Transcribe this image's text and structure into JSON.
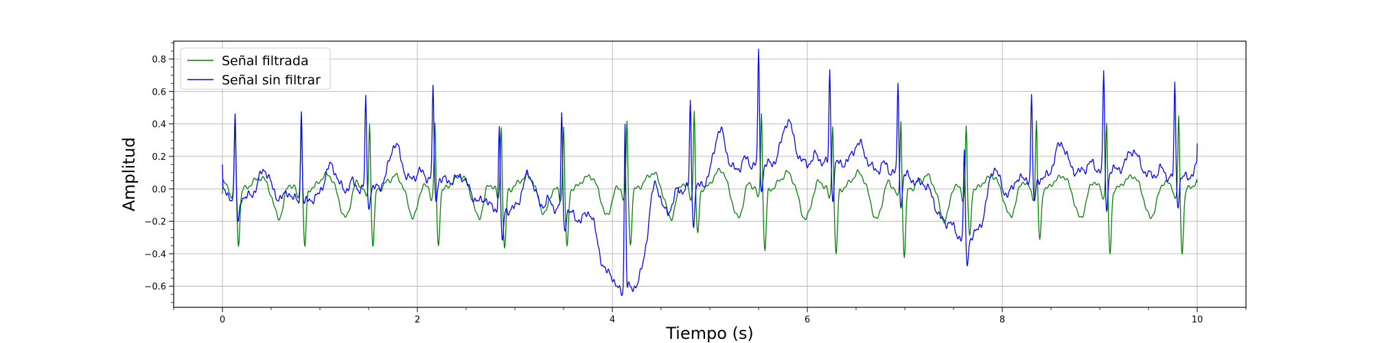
{
  "chart_data": {
    "type": "line",
    "title": "",
    "xlabel": "Tiempo (s)",
    "ylabel": "Amplitud",
    "xlim": [
      -0.5,
      10.5
    ],
    "ylim": [
      -0.73,
      0.91
    ],
    "xticks": [
      0,
      2,
      4,
      6,
      8,
      10
    ],
    "xtick_labels": [
      "0",
      "2",
      "4",
      "6",
      "8",
      "10"
    ],
    "yticks": [
      -0.6,
      -0.4,
      -0.2,
      0.0,
      0.2,
      0.4,
      0.6,
      0.8
    ],
    "ytick_labels": [
      "−0.6",
      "−0.4",
      "−0.2",
      "0.0",
      "0.2",
      "0.4",
      "0.6",
      "0.8"
    ],
    "grid": true,
    "legend_position": "top-left",
    "series": [
      {
        "name": "Señal filtrada",
        "color": "#008000",
        "beats": [
          0.13,
          0.81,
          1.51,
          2.18,
          2.86,
          3.5,
          4.15,
          4.84,
          5.53,
          6.26,
          6.96,
          7.63,
          8.35,
          9.07,
          9.81
        ],
        "r_peak": [
          0.38,
          0.42,
          0.4,
          0.4,
          0.39,
          0.38,
          0.41,
          0.48,
          0.48,
          0.4,
          0.42,
          0.38,
          0.4,
          0.4,
          0.43
        ],
        "s_trough": [
          -0.34,
          -0.36,
          -0.35,
          -0.35,
          -0.38,
          -0.37,
          -0.34,
          -0.28,
          -0.38,
          -0.41,
          -0.41,
          -0.3,
          -0.32,
          -0.4,
          -0.39
        ],
        "t_wave": [
          0.07,
          0.09,
          0.08,
          0.08,
          0.08,
          0.08,
          0.1,
          0.12,
          0.1,
          0.1,
          0.08,
          0.08,
          0.08,
          0.08,
          0.08
        ],
        "t_trough": [
          -0.18,
          -0.18,
          -0.18,
          -0.18,
          -0.17,
          -0.18,
          -0.18,
          -0.18,
          -0.19,
          -0.19,
          -0.2,
          -0.17,
          -0.18,
          -0.18,
          -0.17
        ],
        "x_range": [
          0.0,
          10.0
        ],
        "start_value": -0.03,
        "end_value": 0.04
      },
      {
        "name": "Señal sin filtrar",
        "color": "#0000ff",
        "beats": [
          0.13,
          0.81,
          1.47,
          2.16,
          2.84,
          3.48,
          4.13,
          4.8,
          5.5,
          6.23,
          6.93,
          7.61,
          8.3,
          9.04,
          9.77
        ],
        "r_peak": [
          0.47,
          0.49,
          0.58,
          0.63,
          0.41,
          0.45,
          0.4,
          0.55,
          0.84,
          0.74,
          0.64,
          0.22,
          0.57,
          0.71,
          0.64
        ],
        "s_trough": [
          -0.22,
          -0.1,
          -0.1,
          -0.07,
          -0.33,
          -0.24,
          -0.6,
          -0.21,
          0.0,
          -0.05,
          -0.1,
          -0.47,
          -0.09,
          -0.13,
          -0.09
        ],
        "baseline": [
          -0.05,
          -0.07,
          0.0,
          0.07,
          -0.13,
          -0.12,
          -0.64,
          0.01,
          0.15,
          0.16,
          0.1,
          -0.3,
          0.06,
          0.12,
          0.07
        ],
        "t_wave": [
          0.17,
          0.16,
          0.31,
          0.18,
          0.14,
          0.12,
          -0.16,
          0.38,
          0.48,
          0.34,
          0.2,
          0.05,
          0.31,
          0.29,
          0.28
        ],
        "x_range": [
          0.0,
          10.0
        ],
        "start_value": 0.15,
        "end_value": 0.28
      }
    ]
  }
}
